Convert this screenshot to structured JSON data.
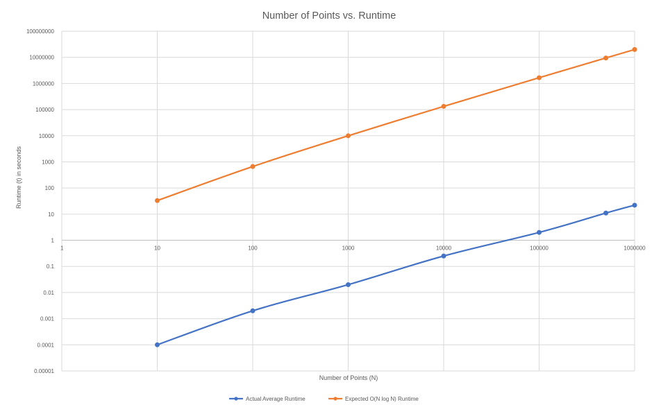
{
  "chart_data": {
    "type": "line",
    "title": "Number of Points vs. Runtime",
    "xlabel": "Number of Points (N)",
    "ylabel": "Runtime (t) in seconds",
    "x_scale": "log",
    "y_scale": "log",
    "xlim": [
      1,
      1000000
    ],
    "ylim": [
      1e-05,
      100000000
    ],
    "x_ticks": [
      "1",
      "10",
      "100",
      "1000",
      "10000",
      "100000",
      "1000000"
    ],
    "y_ticks": [
      "0.00001",
      "0.0001",
      "0.001",
      "0.01",
      "0.1",
      "1",
      "10",
      "100",
      "1000",
      "10000",
      "100000",
      "1000000",
      "10000000",
      "100000000"
    ],
    "grid": true,
    "legend_position": "bottom",
    "series": [
      {
        "name": "Actual Average Runtime",
        "color": "#4472c4",
        "x": [
          10,
          100,
          1000,
          10000,
          100000,
          500000,
          1000000
        ],
        "y": [
          0.0001,
          0.002,
          0.02,
          0.25,
          2,
          11,
          22
        ]
      },
      {
        "name": "Expected O(N log N) Runtime",
        "color": "#ed7d31",
        "x": [
          10,
          100,
          1000,
          10000,
          100000,
          500000,
          1000000
        ],
        "y": [
          33,
          664,
          9966,
          132877,
          1660964,
          9465784,
          19931569
        ]
      }
    ]
  }
}
